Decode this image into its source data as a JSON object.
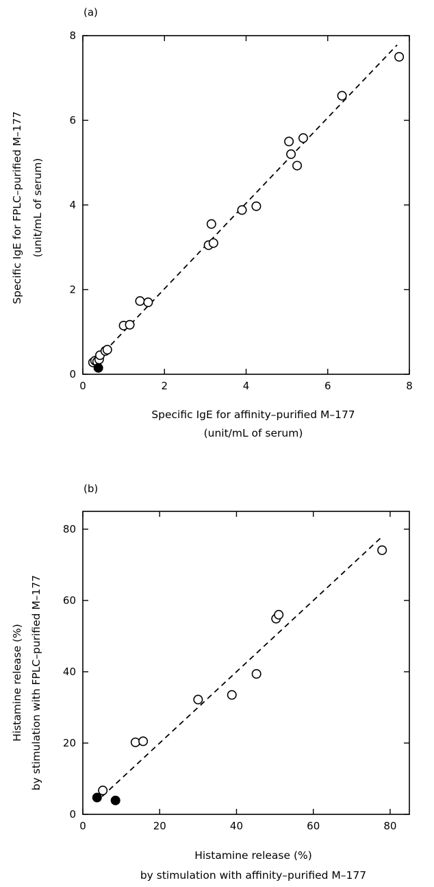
{
  "chart_data": [
    {
      "panel": "(a)",
      "type": "scatter",
      "xlabel_lines": [
        "Specific IgE for affinity–purified M–177",
        "(unit/mL of serum)"
      ],
      "ylabel_lines": [
        "Specific IgE for FPLC–purified M–177",
        "(unit/mL of serum)"
      ],
      "xlim": [
        0,
        8
      ],
      "ylim": [
        0,
        8
      ],
      "xticks": [
        0,
        2,
        4,
        6,
        8
      ],
      "yticks": [
        0,
        2,
        4,
        6,
        8
      ],
      "open_points": [
        [
          0.25,
          0.28
        ],
        [
          0.3,
          0.32
        ],
        [
          0.35,
          0.3
        ],
        [
          0.4,
          0.35
        ],
        [
          0.42,
          0.45
        ],
        [
          0.55,
          0.55
        ],
        [
          0.6,
          0.58
        ],
        [
          1.0,
          1.15
        ],
        [
          1.15,
          1.17
        ],
        [
          1.4,
          1.73
        ],
        [
          1.6,
          1.7
        ],
        [
          3.08,
          3.05
        ],
        [
          3.15,
          3.55
        ],
        [
          3.2,
          3.1
        ],
        [
          3.9,
          3.88
        ],
        [
          4.25,
          3.97
        ],
        [
          5.05,
          5.5
        ],
        [
          5.1,
          5.2
        ],
        [
          5.25,
          4.93
        ],
        [
          5.4,
          5.58
        ],
        [
          6.35,
          6.58
        ],
        [
          7.75,
          7.5
        ]
      ],
      "filled_points": [
        [
          0.38,
          0.15
        ]
      ],
      "fit_line": [
        [
          0.2,
          0.2
        ],
        [
          7.7,
          7.78
        ]
      ]
    },
    {
      "panel": "(b)",
      "type": "scatter",
      "xlabel_lines": [
        "Histamine release (%)",
        "by stimulation with affinity–purified M–177"
      ],
      "ylabel_lines": [
        "Histamine release (%)",
        "by stimulation with FPLC–purified M–177"
      ],
      "xlim": [
        0,
        85
      ],
      "ylim": [
        0,
        85
      ],
      "xticks": [
        0,
        20,
        40,
        60,
        80
      ],
      "yticks": [
        0,
        20,
        40,
        60,
        80
      ],
      "open_points": [
        [
          5.2,
          6.7
        ],
        [
          13.7,
          20.2
        ],
        [
          15.7,
          20.5
        ],
        [
          30.0,
          32.2
        ],
        [
          38.8,
          33.5
        ],
        [
          45.2,
          39.4
        ],
        [
          50.3,
          54.9
        ],
        [
          51.0,
          56.0
        ],
        [
          77.9,
          74.1
        ]
      ],
      "filled_points": [
        [
          3.7,
          4.7
        ],
        [
          8.5,
          3.9
        ]
      ],
      "fit_line": [
        [
          5.0,
          5.0
        ],
        [
          77.5,
          77.5
        ]
      ]
    }
  ]
}
